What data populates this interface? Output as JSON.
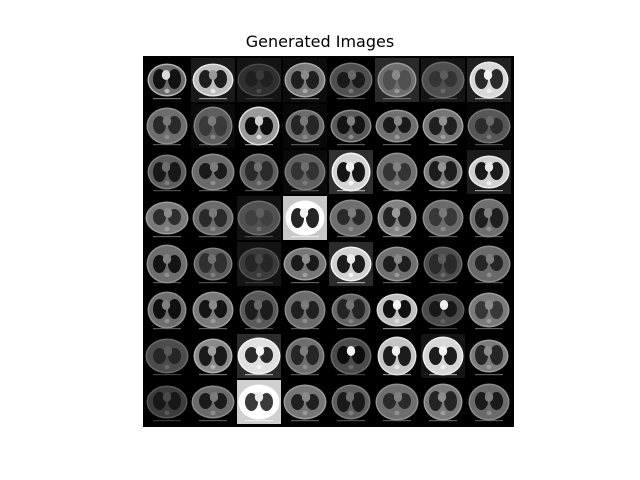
{
  "figure": {
    "title": "Generated Images",
    "grid": {
      "rows": 8,
      "cols": 8
    },
    "tiles": [
      [
        {
          "bg": "#000",
          "body": "#6a6a6a",
          "lung": "#121212",
          "heart": "#dadada",
          "rim": "#b8b8b8"
        },
        {
          "bg": "#1a1a1a",
          "body": "#bdbdbd",
          "lung": "#1e1e1e",
          "heart": "#9a9a9a",
          "rim": "#e8e8e8"
        },
        {
          "bg": "#141414",
          "body": "#2f2f2f",
          "lung": "#202020",
          "heart": "#3a3a3a",
          "rim": "#4a4a4a"
        },
        {
          "bg": "#0c0c0c",
          "body": "#7a7a7a",
          "lung": "#1f1f1f",
          "heart": "#8a8a8a",
          "rim": "#aaaaaa"
        },
        {
          "bg": "#000",
          "body": "#4f4f4f",
          "lung": "#1a1a1a",
          "heart": "#686868",
          "rim": "#777777"
        },
        {
          "bg": "#2a2a2a",
          "body": "#6e6e6e",
          "lung": "#505050",
          "heart": "#8a8a8a",
          "rim": "#9a9a9a"
        },
        {
          "bg": "#141414",
          "body": "#4e4e4e",
          "lung": "#343434",
          "heart": "#5c5c5c",
          "rim": "#6a6a6a"
        },
        {
          "bg": "#202020",
          "body": "#d8d8d8",
          "lung": "#2a2a2a",
          "heart": "#f2f2f2",
          "rim": "#ededed"
        }
      ],
      [
        {
          "bg": "#000",
          "body": "#6e6e6e",
          "lung": "#2a2a2a",
          "heart": "#7a7a7a",
          "rim": "#8e8e8e"
        },
        {
          "bg": "#0a0a0a",
          "body": "#5e5e5e",
          "lung": "#3a3a3a",
          "heart": "#7a7a7a",
          "rim": "#868686"
        },
        {
          "bg": "#000",
          "body": "#9a9a9a",
          "lung": "#0c0c0c",
          "heart": "#cfcfcf",
          "rim": "#e0e0e0"
        },
        {
          "bg": "#080808",
          "body": "#6b6b6b",
          "lung": "#262626",
          "heart": "#7a7a7a",
          "rim": "#8a8a8a"
        },
        {
          "bg": "#000",
          "body": "#5a5a5a",
          "lung": "#141414",
          "heart": "#808080",
          "rim": "#8f8f8f"
        },
        {
          "bg": "#000",
          "body": "#707070",
          "lung": "#1a1a1a",
          "heart": "#8a8a8a",
          "rim": "#9a9a9a"
        },
        {
          "bg": "#000",
          "body": "#777777",
          "lung": "#202020",
          "heart": "#929292",
          "rim": "#a2a2a2"
        },
        {
          "bg": "#060606",
          "body": "#575757",
          "lung": "#2c2c2c",
          "heart": "#6a6a6a",
          "rim": "#7a7a7a"
        }
      ],
      [
        {
          "bg": "#000",
          "body": "#5d5d5d",
          "lung": "#181818",
          "heart": "#6e6e6e",
          "rim": "#7e7e7e"
        },
        {
          "bg": "#000",
          "body": "#6a6a6a",
          "lung": "#1a1a1a",
          "heart": "#7e7e7e",
          "rim": "#8e8e8e"
        },
        {
          "bg": "#000",
          "body": "#5e5e5e",
          "lung": "#2a2a2a",
          "heart": "#707070",
          "rim": "#808080"
        },
        {
          "bg": "#0a0a0a",
          "body": "#606060",
          "lung": "#333333",
          "heart": "#6e6e6e",
          "rim": "#7d7d7d"
        },
        {
          "bg": "#303030",
          "body": "#d4d4d4",
          "lung": "#151515",
          "heart": "#f0f0f0",
          "rim": "#f6f6f6"
        },
        {
          "bg": "#000",
          "body": "#707070",
          "lung": "#343434",
          "heart": "#838383",
          "rim": "#939393"
        },
        {
          "bg": "#000",
          "body": "#7c7c7c",
          "lung": "#1c1c1c",
          "heart": "#959595",
          "rim": "#a5a5a5"
        },
        {
          "bg": "#1c1c1c",
          "body": "#cfcfcf",
          "lung": "#1a1a1a",
          "heart": "#e6e6e6",
          "rim": "#ececec"
        }
      ],
      [
        {
          "bg": "#000",
          "body": "#7a7a7a",
          "lung": "#2e2e2e",
          "heart": "#8c8c8c",
          "rim": "#9c9c9c"
        },
        {
          "bg": "#000",
          "body": "#6a6a6a",
          "lung": "#2a2a2a",
          "heart": "#7a7a7a",
          "rim": "#8a8a8a"
        },
        {
          "bg": "#121212",
          "body": "#515151",
          "lung": "#404040",
          "heart": "#5e5e5e",
          "rim": "#6e6e6e"
        },
        {
          "bg": "#c8c8c8",
          "body": "#ffffff",
          "lung": "#262626",
          "heart": "#f0f0f0",
          "rim": "#ffffff"
        },
        {
          "bg": "#000",
          "body": "#6e6e6e",
          "lung": "#2a2a2a",
          "heart": "#7e7e7e",
          "rim": "#8e8e8e"
        },
        {
          "bg": "#000",
          "body": "#838383",
          "lung": "#252525",
          "heart": "#9a9a9a",
          "rim": "#a6a6a6"
        },
        {
          "bg": "#000",
          "body": "#6a6a6a",
          "lung": "#383838",
          "heart": "#7a7a7a",
          "rim": "#8a8a8a"
        },
        {
          "bg": "#000",
          "body": "#6e6e6e",
          "lung": "#1e1e1e",
          "heart": "#808080",
          "rim": "#8e8e8e"
        }
      ],
      [
        {
          "bg": "#000",
          "body": "#6e6e6e",
          "lung": "#141414",
          "heart": "#808080",
          "rim": "#909090"
        },
        {
          "bg": "#000",
          "body": "#5e5e5e",
          "lung": "#303030",
          "heart": "#707070",
          "rim": "#808080"
        },
        {
          "bg": "#141414",
          "body": "#3a3a3a",
          "lung": "#262626",
          "heart": "#474747",
          "rim": "#555555"
        },
        {
          "bg": "#000",
          "body": "#777777",
          "lung": "#1a1a1a",
          "heart": "#8f8f8f",
          "rim": "#a0a0a0"
        },
        {
          "bg": "#2a2a2a",
          "body": "#d0d0d0",
          "lung": "#1c1c1c",
          "heart": "#ececec",
          "rim": "#f2f2f2"
        },
        {
          "bg": "#000",
          "body": "#707070",
          "lung": "#1e1e1e",
          "heart": "#888888",
          "rim": "#989898"
        },
        {
          "bg": "#000",
          "body": "#4c4c4c",
          "lung": "#2a2a2a",
          "heart": "#5c5c5c",
          "rim": "#6a6a6a"
        },
        {
          "bg": "#000",
          "body": "#6a6a6a",
          "lung": "#262626",
          "heart": "#7c7c7c",
          "rim": "#8c8c8c"
        }
      ],
      [
        {
          "bg": "#000",
          "body": "#6e6e6e",
          "lung": "#101010",
          "heart": "#808080",
          "rim": "#909090"
        },
        {
          "bg": "#000",
          "body": "#7a7a7a",
          "lung": "#141414",
          "heart": "#8c8c8c",
          "rim": "#9c9c9c"
        },
        {
          "bg": "#000",
          "body": "#595959",
          "lung": "#1c1c1c",
          "heart": "#6a6a6a",
          "rim": "#7a7a7a"
        },
        {
          "bg": "#000",
          "body": "#6c6c6c",
          "lung": "#202020",
          "heart": "#7c7c7c",
          "rim": "#8c8c8c"
        },
        {
          "bg": "#000",
          "body": "#656565",
          "lung": "#242424",
          "heart": "#747474",
          "rim": "#848484"
        },
        {
          "bg": "#000",
          "body": "#bfbfbf",
          "lung": "#101010",
          "heart": "#f4f4f4",
          "rim": "#dadada"
        },
        {
          "bg": "#000",
          "body": "#4a4a4a",
          "lung": "#181818",
          "heart": "#ededed",
          "rim": "#626262"
        },
        {
          "bg": "#000",
          "body": "#7a7a7a",
          "lung": "#383838",
          "heart": "#8c8c8c",
          "rim": "#9c9c9c"
        }
      ],
      [
        {
          "bg": "#000",
          "body": "#4c4c4c",
          "lung": "#262626",
          "heart": "#5a5a5a",
          "rim": "#6a6a6a"
        },
        {
          "bg": "#000",
          "body": "#8a8a8a",
          "lung": "#1a1a1a",
          "heart": "#a0a0a0",
          "rim": "#b0b0b0"
        },
        {
          "bg": "#2c2c2c",
          "body": "#e0e0e0",
          "lung": "#2a2a2a",
          "heart": "#f6f6f6",
          "rim": "#f2f2f2"
        },
        {
          "bg": "#000",
          "body": "#6e6e6e",
          "lung": "#262626",
          "heart": "#7e7e7e",
          "rim": "#8e8e8e"
        },
        {
          "bg": "#000",
          "body": "#4a4a4a",
          "lung": "#0c0c0c",
          "heart": "#f0f0f0",
          "rim": "#6a6a6a"
        },
        {
          "bg": "#000",
          "body": "#c4c4c4",
          "lung": "#1c1c1c",
          "heart": "#f2f2f2",
          "rim": "#e2e2e2"
        },
        {
          "bg": "#141414",
          "body": "#d6d6d6",
          "lung": "#1c1c1c",
          "heart": "#f4f4f4",
          "rim": "#ededed"
        },
        {
          "bg": "#000",
          "body": "#7c7c7c",
          "lung": "#262626",
          "heart": "#8c8c8c",
          "rim": "#9c9c9c"
        }
      ],
      [
        {
          "bg": "#000",
          "body": "#3c3c3c",
          "lung": "#181818",
          "heart": "#4a4a4a",
          "rim": "#585858"
        },
        {
          "bg": "#000",
          "body": "#6a6a6a",
          "lung": "#1a1a1a",
          "heart": "#7c7c7c",
          "rim": "#8c8c8c"
        },
        {
          "bg": "#d0d0d0",
          "body": "#ffffff",
          "lung": "#3a3a3a",
          "heart": "#eaeaea",
          "rim": "#ffffff"
        },
        {
          "bg": "#000",
          "body": "#777777",
          "lung": "#202020",
          "heart": "#8a8a8a",
          "rim": "#9a9a9a"
        },
        {
          "bg": "#000",
          "body": "#5e5e5e",
          "lung": "#1a1a1a",
          "heart": "#6e6e6e",
          "rim": "#7e7e7e"
        },
        {
          "bg": "#000",
          "body": "#6e6e6e",
          "lung": "#2a2a2a",
          "heart": "#808080",
          "rim": "#909090"
        },
        {
          "bg": "#000",
          "body": "#7a7a7a",
          "lung": "#242424",
          "heart": "#8c8c8c",
          "rim": "#9c9c9c"
        },
        {
          "bg": "#000",
          "body": "#6a6a6a",
          "lung": "#1a1a1a",
          "heart": "#7c7c7c",
          "rim": "#8c8c8c"
        }
      ]
    ]
  }
}
